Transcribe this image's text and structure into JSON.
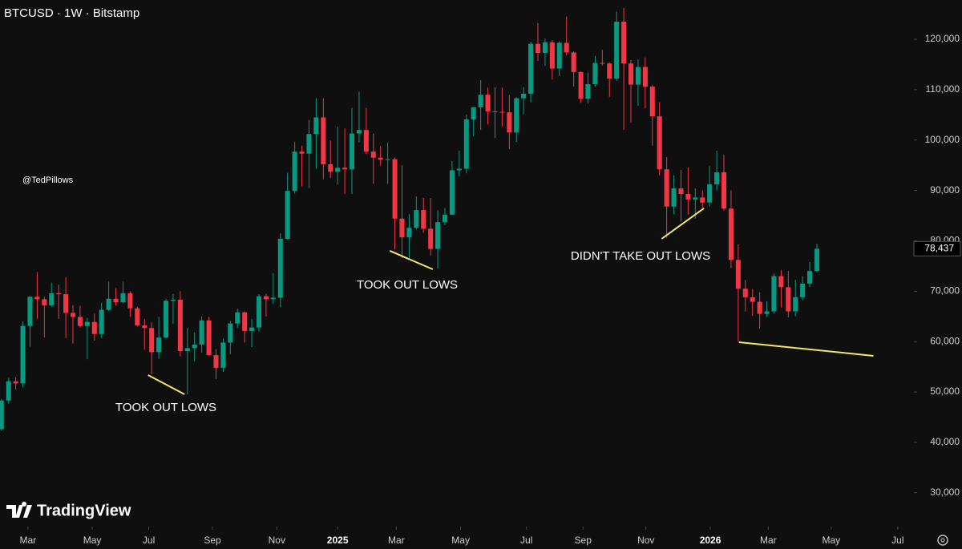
{
  "header": {
    "title": "BTCUSD · 1W · Bitstamp"
  },
  "watermark": "@TedPillows",
  "brand": "TradingView",
  "chart_data": {
    "type": "candlestick",
    "up_color": "#089981",
    "down_color": "#f23645",
    "open": [
      42600,
      48300,
      52100,
      51700,
      63100,
      68900,
      68400,
      67200,
      69600,
      69400,
      65700,
      64900,
      63100,
      63900,
      61500,
      66300,
      68500,
      67800,
      69600,
      66600,
      63200,
      62700,
      57900,
      60800,
      68100,
      68300,
      58100,
      58700,
      59400,
      64200,
      57300,
      54800,
      59800,
      63600,
      65800,
      62100,
      62800,
      69000,
      68400,
      68700,
      80400,
      89900,
      97700,
      97300,
      101200,
      104500,
      95200,
      93700,
      94500,
      94200,
      101300,
      102000,
      97700,
      96500,
      96100,
      96200,
      84400,
      80700,
      82600,
      86100,
      82400,
      78400,
      83700,
      85200,
      94000,
      94300,
      104100,
      106500,
      109000,
      105700,
      105600,
      105500,
      101500,
      108300,
      109200,
      119100,
      117300,
      119400,
      114200,
      119300,
      117400,
      113500,
      108200,
      111100,
      115300,
      115200,
      112200,
      123500,
      115200,
      111000,
      114500,
      110600,
      104700,
      94200,
      86800,
      90400,
      89300,
      88200,
      88600,
      87600,
      91200,
      93600,
      86400,
      76200,
      70500,
      68800,
      67900,
      65500,
      66000,
      73000,
      70800,
      66000,
      68800,
      71500,
      74000
    ],
    "high": [
      48600,
      52800,
      52900,
      64000,
      69000,
      73800,
      68900,
      71700,
      71300,
      72800,
      67200,
      67100,
      64700,
      65500,
      67700,
      71900,
      70600,
      71900,
      70000,
      66900,
      64500,
      63800,
      64900,
      68400,
      69400,
      70000,
      62700,
      61800,
      65000,
      64900,
      58500,
      60600,
      64100,
      66500,
      66000,
      64500,
      69400,
      69500,
      73600,
      81500,
      93500,
      99600,
      98900,
      104000,
      108300,
      108300,
      99900,
      102700,
      102300,
      106400,
      109600,
      106400,
      101300,
      98800,
      99500,
      96500,
      95000,
      85300,
      88800,
      88500,
      88500,
      86100,
      86500,
      95800,
      97900,
      105000,
      106600,
      111900,
      110400,
      110500,
      110400,
      108900,
      108500,
      110500,
      119500,
      123200,
      120200,
      119800,
      119600,
      124500,
      117600,
      113600,
      113400,
      116700,
      117900,
      115400,
      125500,
      126200,
      115900,
      116000,
      116400,
      110900,
      107500,
      96600,
      93000,
      94100,
      94600,
      90400,
      90000,
      94800,
      97900,
      97000,
      90000,
      79300,
      72200,
      70400,
      69800,
      68000,
      73500,
      74200,
      74000,
      72300,
      73000,
      75800,
      79400
    ],
    "low": [
      42300,
      47700,
      50500,
      50900,
      59000,
      64500,
      60800,
      66900,
      64500,
      60700,
      59600,
      62800,
      56500,
      60200,
      60700,
      66100,
      67100,
      67600,
      64900,
      63000,
      58400,
      53500,
      56600,
      60600,
      63500,
      57100,
      49500,
      56100,
      57800,
      57200,
      52600,
      54000,
      57500,
      62700,
      59800,
      58900,
      62000,
      65000,
      67500,
      66800,
      80200,
      89400,
      90800,
      90500,
      94300,
      92200,
      92500,
      91200,
      89300,
      89300,
      99500,
      97200,
      91300,
      94900,
      91300,
      78300,
      76600,
      76600,
      82200,
      81600,
      77100,
      74500,
      83100,
      85100,
      92800,
      93400,
      100800,
      102000,
      103100,
      100400,
      102700,
      98200,
      99600,
      105100,
      107500,
      115700,
      114700,
      112000,
      112700,
      116800,
      110600,
      107400,
      107300,
      110600,
      114800,
      108600,
      111800,
      102000,
      103500,
      106800,
      106300,
      98900,
      93000,
      80600,
      85300,
      83800,
      85200,
      84400,
      86600,
      86800,
      90000,
      86000,
      74600,
      60000,
      66000,
      65100,
      62600,
      64900,
      65500,
      66800,
      64800,
      65000,
      68200,
      70800,
      73800
    ],
    "close": [
      48300,
      52100,
      51700,
      63100,
      68900,
      68400,
      67200,
      69600,
      69400,
      65700,
      64900,
      63100,
      63900,
      61500,
      66300,
      68500,
      67800,
      69600,
      66600,
      63200,
      62700,
      57900,
      60800,
      68100,
      68300,
      58100,
      58700,
      59400,
      64200,
      57300,
      54800,
      59800,
      63600,
      65800,
      62100,
      62800,
      69000,
      68400,
      68700,
      80400,
      89900,
      97700,
      97300,
      101200,
      104500,
      95200,
      93700,
      94500,
      94200,
      101300,
      102000,
      97700,
      96500,
      96100,
      96200,
      84400,
      80700,
      82600,
      86100,
      82400,
      78400,
      83700,
      85200,
      94000,
      94300,
      104100,
      106500,
      109000,
      105700,
      105600,
      105500,
      101500,
      108300,
      109200,
      119100,
      117300,
      119400,
      114200,
      119300,
      117400,
      113500,
      108200,
      111100,
      115300,
      115200,
      112200,
      123500,
      115200,
      111000,
      114500,
      110600,
      104700,
      94200,
      86800,
      90400,
      89300,
      88200,
      88600,
      87600,
      91200,
      93600,
      86400,
      76200,
      70500,
      68800,
      67900,
      65500,
      66000,
      73000,
      70800,
      66000,
      68800,
      71500,
      74000,
      78437
    ],
    "xlim": [
      -0.2,
      127
    ],
    "xticks": [
      {
        "value": 3.7,
        "label": "Mar"
      },
      {
        "value": 12.7,
        "label": "May"
      },
      {
        "value": 20.6,
        "label": "Jul"
      },
      {
        "value": 29.5,
        "label": "Sep"
      },
      {
        "value": 38.5,
        "label": "Nov"
      },
      {
        "value": 47.0,
        "label": "2025"
      },
      {
        "value": 55.2,
        "label": "Mar"
      },
      {
        "value": 64.2,
        "label": "May"
      },
      {
        "value": 73.4,
        "label": "Jul"
      },
      {
        "value": 81.3,
        "label": "Sep"
      },
      {
        "value": 90.1,
        "label": "Nov"
      },
      {
        "value": 99.1,
        "label": "2026"
      },
      {
        "value": 107.2,
        "label": "Mar"
      },
      {
        "value": 116.0,
        "label": "May"
      },
      {
        "value": 125.3,
        "label": "Jul"
      }
    ],
    "ylim": [
      23600,
      127800
    ],
    "yticks": [
      {
        "value": 30000,
        "label": "30,000"
      },
      {
        "value": 40000,
        "label": "40,000"
      },
      {
        "value": 50000,
        "label": "50,000"
      },
      {
        "value": 60000,
        "label": "60,000"
      },
      {
        "value": 70000,
        "label": "70,000"
      },
      {
        "value": 80000,
        "label": "80,000"
      },
      {
        "value": 90000,
        "label": "90,000"
      },
      {
        "value": 100000,
        "label": "100,000"
      },
      {
        "value": 110000,
        "label": "110,000"
      },
      {
        "value": 120000,
        "label": "120,000"
      }
    ],
    "last_price": {
      "value": 78437,
      "label": "78,437"
    },
    "line_color": "#f5e663",
    "annotations": [
      {
        "text": "TOOK OUT LOWS",
        "x": [
          20.5,
          25.6
        ],
        "y": [
          53350,
          49530
        ]
      },
      {
        "text": "TOOK OUT LOWS",
        "x": [
          54.3,
          60.3
        ],
        "y": [
          78010,
          74350
        ]
      },
      {
        "text": "DIDN'T TAKE OUT LOWS",
        "x": [
          92.3,
          98.2
        ],
        "y": [
          80400,
          86440
        ]
      },
      {
        "x": [
          103.1,
          121.9
        ],
        "y": [
          59870,
          57170
        ]
      }
    ]
  }
}
